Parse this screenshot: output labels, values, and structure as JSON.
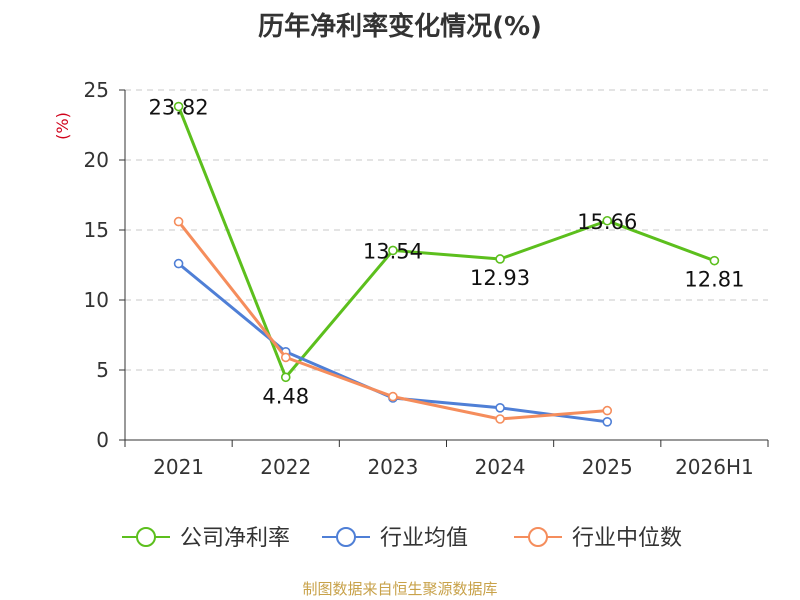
{
  "chart_data": {
    "type": "line",
    "title": "历年净利率变化情况(%)",
    "ylabel": "(%)",
    "categories": [
      "2021",
      "2022",
      "2023",
      "2024",
      "2025",
      "2026H1"
    ],
    "ylim": [
      0,
      25
    ],
    "yticks": [
      0,
      5,
      10,
      15,
      20,
      25
    ],
    "grid": true,
    "legend_position": "bottom",
    "series": [
      {
        "name": "公司净利率",
        "color": "#5cbf1d",
        "values": [
          23.82,
          4.48,
          13.54,
          12.93,
          15.66,
          12.81
        ],
        "labels": [
          "23.82",
          "4.48",
          "13.54",
          "12.93",
          "15.66",
          "12.81"
        ]
      },
      {
        "name": "行业均值",
        "color": "#4f7fd6",
        "values": [
          12.6,
          6.3,
          3.0,
          2.3,
          1.3,
          null
        ]
      },
      {
        "name": "行业中位数",
        "color": "#f58d5c",
        "values": [
          15.6,
          5.9,
          3.1,
          1.5,
          2.1,
          null
        ]
      }
    ]
  },
  "source": "制图数据来自恒生聚源数据库"
}
